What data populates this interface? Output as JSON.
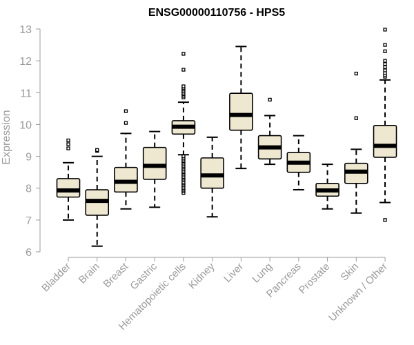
{
  "chart_data": {
    "type": "boxplot",
    "title": "ENSG00000110756 - HPS5",
    "ylabel": "Expression",
    "xlabel": "",
    "ylim": [
      6,
      13
    ],
    "yticks": [
      6,
      7,
      8,
      9,
      10,
      11,
      12,
      13
    ],
    "grid": false,
    "categories": [
      "Bladder",
      "Brain",
      "Breast",
      "Gastric",
      "Hematopoietic cells",
      "Kidney",
      "Liver",
      "Lung",
      "Pancreas",
      "Prostate",
      "Skin",
      "Unknown / Other"
    ],
    "boxes": [
      {
        "category": "Bladder",
        "whisker_low": 7.0,
        "q1": 7.72,
        "median": 7.93,
        "q3": 8.3,
        "whisker_high": 8.8,
        "outliers": [
          9.25,
          9.38,
          9.5
        ]
      },
      {
        "category": "Brain",
        "whisker_low": 6.18,
        "q1": 7.15,
        "median": 7.6,
        "q3": 7.95,
        "whisker_high": 9.0,
        "outliers": [
          9.17,
          9.2
        ]
      },
      {
        "category": "Breast",
        "whisker_low": 7.35,
        "q1": 7.88,
        "median": 8.2,
        "q3": 8.65,
        "whisker_high": 9.72,
        "outliers": [
          10.05,
          10.42
        ]
      },
      {
        "category": "Gastric",
        "whisker_low": 7.4,
        "q1": 8.28,
        "median": 8.7,
        "q3": 9.28,
        "whisker_high": 9.78,
        "outliers": []
      },
      {
        "category": "Hematopoietic cells",
        "whisker_low": 9.05,
        "q1": 9.7,
        "median": 9.93,
        "q3": 10.12,
        "whisker_high": 10.7,
        "outliers": [
          7.85,
          7.9,
          7.95,
          8.0,
          8.05,
          8.1,
          8.15,
          8.2,
          8.25,
          8.3,
          8.35,
          8.4,
          8.45,
          8.5,
          8.55,
          8.6,
          8.65,
          8.7,
          8.75,
          8.8,
          8.85,
          8.9,
          8.95,
          9.0,
          10.85,
          10.9,
          10.95,
          11.0,
          11.05,
          11.1,
          11.15,
          11.2,
          11.72,
          12.22
        ]
      },
      {
        "category": "Kidney",
        "whisker_low": 7.1,
        "q1": 8.0,
        "median": 8.4,
        "q3": 8.95,
        "whisker_high": 9.6,
        "outliers": []
      },
      {
        "category": "Liver",
        "whisker_low": 8.62,
        "q1": 9.82,
        "median": 10.3,
        "q3": 10.98,
        "whisker_high": 12.45,
        "outliers": []
      },
      {
        "category": "Lung",
        "whisker_low": 8.75,
        "q1": 8.92,
        "median": 9.28,
        "q3": 9.65,
        "whisker_high": 10.28,
        "outliers": [
          10.78
        ]
      },
      {
        "category": "Pancreas",
        "whisker_low": 7.95,
        "q1": 8.5,
        "median": 8.8,
        "q3": 9.12,
        "whisker_high": 9.65,
        "outliers": []
      },
      {
        "category": "Prostate",
        "whisker_low": 7.35,
        "q1": 7.75,
        "median": 7.93,
        "q3": 8.15,
        "whisker_high": 8.75,
        "outliers": []
      },
      {
        "category": "Skin",
        "whisker_low": 7.22,
        "q1": 8.15,
        "median": 8.52,
        "q3": 8.78,
        "whisker_high": 9.22,
        "outliers": [
          10.2,
          11.6
        ]
      },
      {
        "category": "Unknown / Other",
        "whisker_low": 7.55,
        "q1": 8.97,
        "median": 9.33,
        "q3": 9.97,
        "whisker_high": 11.4,
        "outliers": [
          7.0,
          11.5,
          11.55,
          11.62,
          11.7,
          11.8,
          11.9,
          12.0,
          12.3,
          12.5,
          12.98
        ]
      }
    ],
    "colors": {
      "box_fill": "#efe8d1",
      "box_stroke": "#000000",
      "axis": "#9a9a9a"
    }
  }
}
